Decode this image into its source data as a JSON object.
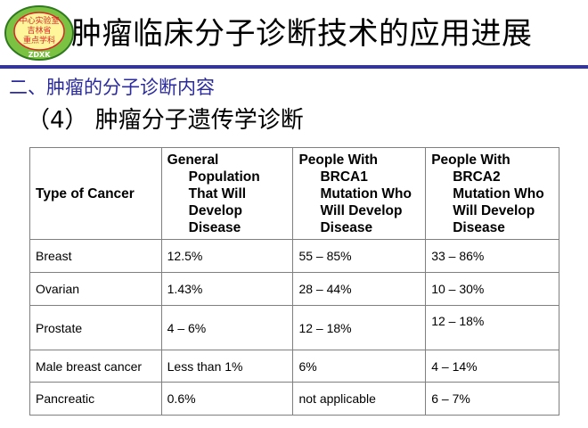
{
  "logo": {
    "top_text": "中心实验室",
    "middle_text": "吉林省",
    "bottom_text": "重点学科",
    "ring_text": "ZDXK"
  },
  "header": {
    "title": "肿瘤临床分子诊断技术的应用进展"
  },
  "subtitle": "二、肿瘤的分子诊断内容",
  "section": "（4） 肿瘤分子遗传学诊断",
  "table": {
    "headers": [
      [
        "Type of Cancer"
      ],
      [
        "General",
        "Population",
        "That Will",
        "Develop",
        "Disease"
      ],
      [
        "People With",
        "BRCA1",
        "Mutation Who",
        "Will Develop",
        "Disease"
      ],
      [
        "People With",
        "BRCA2",
        "Mutation Who",
        "Will Develop",
        "Disease"
      ]
    ],
    "rows": [
      [
        "Breast",
        "12.5%",
        "55 – 85%",
        "33 – 86%"
      ],
      [
        "Ovarian",
        "1.43%",
        "28 – 44%",
        "10 – 30%"
      ],
      [
        "Prostate",
        "4 – 6%",
        "12 – 18%",
        "12 – 18%"
      ],
      [
        "Male breast cancer",
        "Less than 1%",
        "6%",
        "4 – 14%"
      ],
      [
        "Pancreatic",
        "0.6%",
        "not applicable",
        "6 – 7%"
      ]
    ]
  },
  "colors": {
    "accent_rule": "#3333a8",
    "subtitle": "#2b2b9e",
    "logo_green": "#7cc242",
    "logo_red": "#d9252a"
  }
}
